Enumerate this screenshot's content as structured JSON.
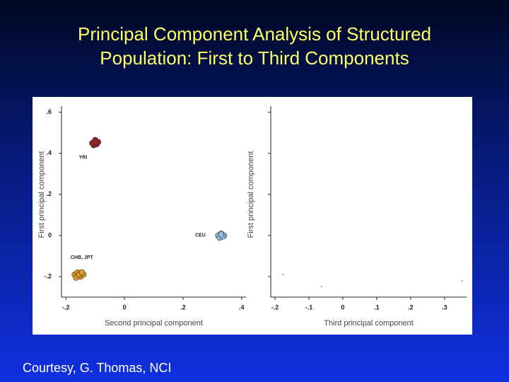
{
  "title": [
    "Principal Component Analysis of Structured",
    "Population: First to Third Components"
  ],
  "footer": "Courtesy, G. Thomas, NCI",
  "chart_data": [
    {
      "type": "scatter",
      "xlabel": "Second principal component",
      "ylabel": "First principal component",
      "xlim": [
        -0.215,
        0.415
      ],
      "ylim": [
        -0.3,
        0.63
      ],
      "xticks": [
        {
          "value": -0.2,
          "label": "-.2"
        },
        0,
        {
          "value": 0.2,
          "label": ".2"
        },
        {
          "value": 0.4,
          "label": ".4"
        }
      ],
      "yticks": [
        {
          "value": -0.2,
          "label": "-.2"
        },
        0,
        {
          "value": 0.2,
          "label": ".2"
        },
        {
          "value": 0.4,
          "label": ".4"
        },
        {
          "value": 0.6,
          "label": ".6"
        }
      ],
      "series": [
        {
          "name": "YRI",
          "color": "#9a2020",
          "x": [
            -0.11,
            -0.1,
            -0.09,
            -0.105,
            -0.095,
            -0.1
          ],
          "values": [
            0.45,
            0.465,
            0.455,
            0.44,
            0.445,
            0.455
          ]
        },
        {
          "name": "CEU",
          "color": "#8fbfe0",
          "x": [
            0.32,
            0.33,
            0.34,
            0.325,
            0.335,
            0.33
          ],
          "values": [
            0.0,
            0.01,
            0.0,
            -0.01,
            -0.005,
            0.005
          ]
        },
        {
          "name": "CHB, JPT",
          "color": "#e09a20",
          "x": [
            -0.17,
            -0.16,
            -0.15,
            -0.14,
            -0.165,
            -0.155,
            -0.145
          ],
          "values": [
            -0.19,
            -0.18,
            -0.2,
            -0.19,
            -0.205,
            -0.19,
            -0.18
          ]
        }
      ]
    },
    {
      "type": "scatter",
      "xlabel": "Third principal component",
      "ylabel": "First principal component",
      "xlim": [
        -0.2125,
        0.365
      ],
      "ylim": [
        -0.3,
        0.63
      ],
      "xticks": [
        {
          "value": -0.2,
          "label": "-.2"
        },
        {
          "value": -0.1,
          "label": "-.1"
        },
        0,
        {
          "value": 0.1,
          "label": ".1"
        },
        {
          "value": 0.2,
          "label": ".2"
        },
        {
          "value": 0.3,
          "label": ".3"
        }
      ],
      "yticks": [
        -0.2,
        0,
        0.2,
        0.4,
        0.6
      ],
      "ytick_labels": false,
      "series": [
        {
          "color": "#555555",
          "x": [
            -0.177,
            -0.0625,
            0.352
          ],
          "values": [
            -0.19,
            -0.248,
            -0.221
          ]
        }
      ]
    }
  ]
}
